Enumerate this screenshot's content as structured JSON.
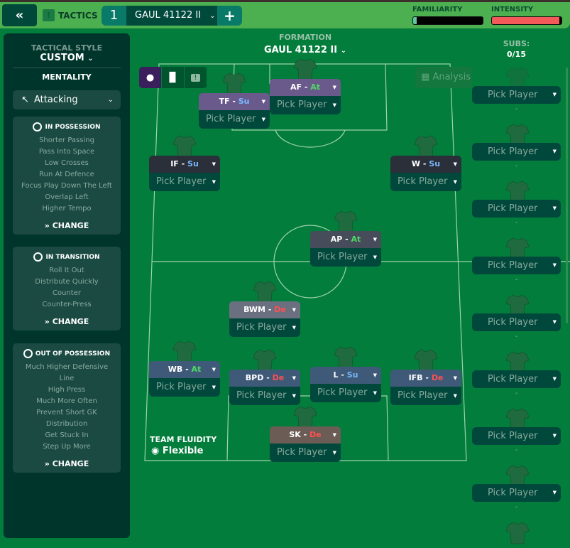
{
  "header": {
    "back_icon": "double-chevron-left-icon",
    "tactics_label": "TACTICS",
    "tab_number": "1",
    "tab_name": "GAUL 41122 II",
    "add_label": "+",
    "familiarity_label": "FAMILIARITY",
    "intensity_label": "INTENSITY",
    "familiarity_level": 0.05,
    "intensity_level": 0.97,
    "familiarity_color": "#5ec7a0",
    "intensity_color": "#f45a5a"
  },
  "left": {
    "style_title": "TACTICAL STYLE",
    "style_value": "CUSTOM",
    "mentality_title": "MENTALITY",
    "mentality_value": "Attacking",
    "in_possession": {
      "title": "IN POSSESSION",
      "items": [
        "Shorter Passing",
        "Pass Into Space",
        "Low Crosses",
        "Run At Defence",
        "Focus Play Down The Left",
        "Overlap Left",
        "Higher Tempo"
      ],
      "change": "CHANGE"
    },
    "in_transition": {
      "title": "IN TRANSITION",
      "items": [
        "Roll It Out",
        "Distribute Quickly",
        "Counter",
        "Counter-Press"
      ],
      "change": "CHANGE"
    },
    "out_of_possession": {
      "title": "OUT OF POSSESSION",
      "items": [
        "Much Higher Defensive",
        "Line",
        "High Press",
        "Much More Often",
        "Prevent Short GK",
        "Distribution",
        "Get Stuck In",
        "Step Up More"
      ],
      "change": "CHANGE"
    }
  },
  "formation": {
    "title": "FORMATION",
    "name": "GAUL 41122 II",
    "analysis": "Analysis",
    "fluidity_title": "TEAM FLUIDITY",
    "fluidity_value": "Flexible"
  },
  "positions": [
    {
      "role": "AF",
      "duty": "At",
      "player": "Pick Player",
      "color": "#6a5a8c"
    },
    {
      "role": "TF",
      "duty": "Su",
      "player": "Pick Player",
      "color": "#6a5a8c"
    },
    {
      "role": "IF",
      "duty": "Su",
      "player": "Pick Player",
      "color": "#2a2f3a"
    },
    {
      "role": "W",
      "duty": "Su",
      "player": "Pick Player",
      "color": "#2a2f3a"
    },
    {
      "role": "AP",
      "duty": "At",
      "player": "Pick Player",
      "color": "#474c5a"
    },
    {
      "role": "BWM",
      "duty": "De",
      "player": "Pick Player",
      "color": "#6b7080"
    },
    {
      "role": "WB",
      "duty": "At",
      "player": "Pick Player",
      "color": "#3f5a78"
    },
    {
      "role": "BPD",
      "duty": "De",
      "player": "Pick Player",
      "color": "#3f5a78"
    },
    {
      "role": "L",
      "duty": "Su",
      "player": "Pick Player",
      "color": "#3f5a78"
    },
    {
      "role": "IFB",
      "duty": "De",
      "player": "Pick Player",
      "color": "#3f5a78"
    },
    {
      "role": "SK",
      "duty": "De",
      "player": "Pick Player",
      "color": "#6b5d55"
    }
  ],
  "duty_colors": {
    "At": "#4cd964",
    "Su": "#7ab8ff",
    "De": "#ff5050"
  },
  "subs": {
    "title": "SUBS:",
    "count": "0/15",
    "slots": [
      "Pick Player",
      "Pick Player",
      "Pick Player",
      "Pick Player",
      "Pick Player",
      "Pick Player",
      "Pick Player",
      "Pick Player"
    ],
    "empty": "-"
  }
}
